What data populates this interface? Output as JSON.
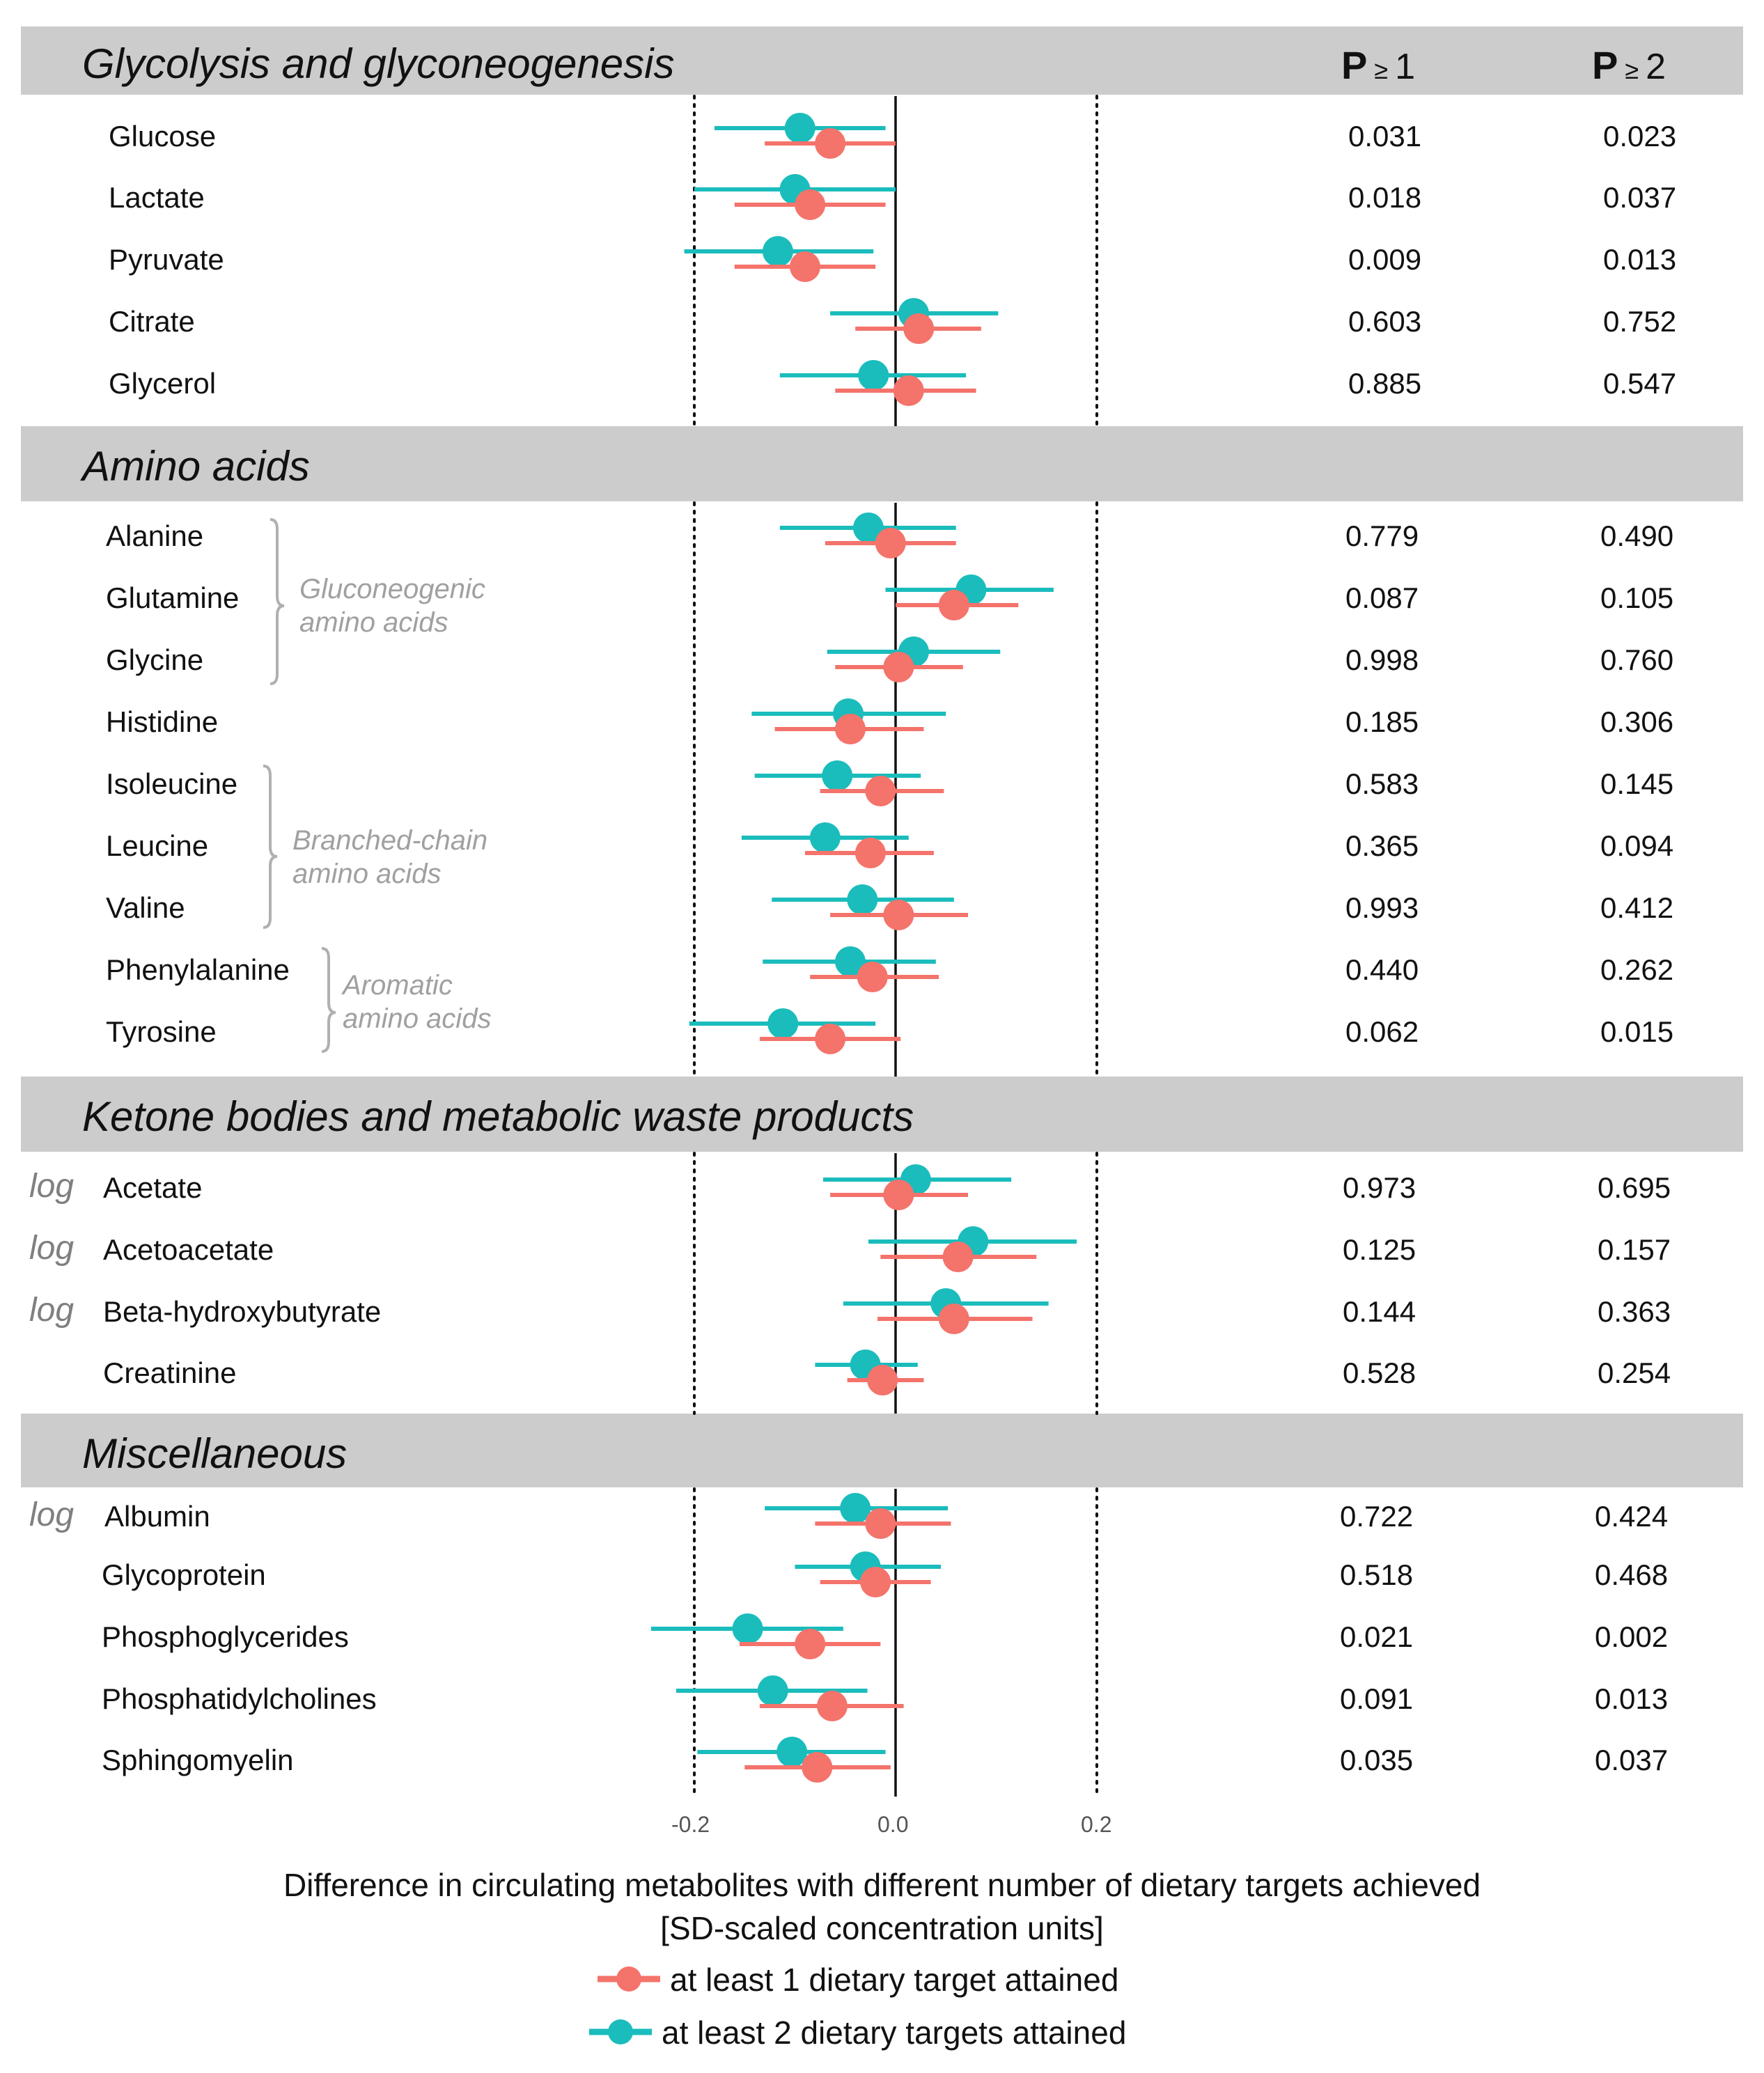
{
  "sections": [
    {
      "title": "Glycolysis and glyconeogenesis"
    },
    {
      "title": "Amino acids"
    },
    {
      "title": "Ketone bodies and metabolic waste products"
    },
    {
      "title": "Miscellaneous"
    }
  ],
  "columns": {
    "p1": {
      "letter": "P",
      "symbol": "≥",
      "value": "1"
    },
    "p2": {
      "letter": "P",
      "symbol": "≥",
      "value": "2"
    }
  },
  "rows": [
    {
      "label": "Glucose",
      "log": "",
      "p1": "0.031",
      "p2": "0.023"
    },
    {
      "label": "Lactate",
      "log": "",
      "p1": "0.018",
      "p2": "0.037"
    },
    {
      "label": "Pyruvate",
      "log": "",
      "p1": "0.009",
      "p2": "0.013"
    },
    {
      "label": "Citrate",
      "log": "",
      "p1": "0.603",
      "p2": "0.752"
    },
    {
      "label": "Glycerol",
      "log": "",
      "p1": "0.885",
      "p2": "0.547"
    },
    {
      "label": "Alanine",
      "log": "",
      "p1": "0.779",
      "p2": "0.490"
    },
    {
      "label": "Glutamine",
      "log": "",
      "p1": "0.087",
      "p2": "0.105"
    },
    {
      "label": "Glycine",
      "log": "",
      "p1": "0.998",
      "p2": "0.760"
    },
    {
      "label": "Histidine",
      "log": "",
      "p1": "0.185",
      "p2": "0.306"
    },
    {
      "label": "Isoleucine",
      "log": "",
      "p1": "0.583",
      "p2": "0.145"
    },
    {
      "label": "Leucine",
      "log": "",
      "p1": "0.365",
      "p2": "0.094"
    },
    {
      "label": "Valine",
      "log": "",
      "p1": "0.993",
      "p2": "0.412"
    },
    {
      "label": "Phenylalanine",
      "log": "",
      "p1": "0.440",
      "p2": "0.262"
    },
    {
      "label": "Tyrosine",
      "log": "",
      "p1": "0.062",
      "p2": "0.015"
    },
    {
      "label": "Acetate",
      "log": "log",
      "p1": "0.973",
      "p2": "0.695"
    },
    {
      "label": "Acetoacetate",
      "log": "log",
      "p1": "0.125",
      "p2": "0.157"
    },
    {
      "label": "Beta-hydroxybutyrate",
      "log": "log",
      "p1": "0.144",
      "p2": "0.363"
    },
    {
      "label": "Creatinine",
      "log": "",
      "p1": "0.528",
      "p2": "0.254"
    },
    {
      "label": "Albumin",
      "log": "log",
      "p1": "0.722",
      "p2": "0.424"
    },
    {
      "label": "Glycoprotein",
      "log": "",
      "p1": "0.518",
      "p2": "0.468"
    },
    {
      "label": "Phosphoglycerides",
      "log": "",
      "p1": "0.021",
      "p2": "0.002"
    },
    {
      "label": "Phosphatidylcholines",
      "log": "",
      "p1": "0.091",
      "p2": "0.013"
    },
    {
      "label": "Sphingomyelin",
      "log": "",
      "p1": "0.035",
      "p2": "0.037"
    }
  ],
  "groups": [
    {
      "line1": "Gluconeogenic",
      "line2": "amino acids"
    },
    {
      "line1": "Branched-chain",
      "line2": "amino acids"
    },
    {
      "line1": "Aromatic",
      "line2": "amino acids"
    }
  ],
  "axis": {
    "ticks": [
      "-0.2",
      "0.0",
      "0.2"
    ],
    "xlabel_line1": "Difference in circulating metabolites with different number of dietary targets achieved",
    "xlabel_line2": "[SD-scaled concentration units]"
  },
  "legend": {
    "s1": "at least 1 dietary target attained",
    "s2": "at least 2 dietary targets attained"
  },
  "colors": {
    "s1": "#f4736b",
    "s2": "#1bbcbc",
    "band": "#cccccc"
  },
  "chart_data": {
    "type": "forest",
    "title": "",
    "xlabel": "Difference in circulating metabolites with different number of dietary targets achieved [SD-scaled concentration units]",
    "xlim": [
      -0.2,
      0.2
    ],
    "xticks": [
      -0.2,
      0.0,
      0.2
    ],
    "reference_lines": [
      -0.2,
      0.0,
      0.2
    ],
    "categories": [
      "Glucose",
      "Lactate",
      "Pyruvate",
      "Citrate",
      "Glycerol",
      "Alanine",
      "Glutamine",
      "Glycine",
      "Histidine",
      "Isoleucine",
      "Leucine",
      "Valine",
      "Phenylalanine",
      "Tyrosine",
      "Acetate",
      "Acetoacetate",
      "Beta-hydroxybutyrate",
      "Creatinine",
      "Albumin",
      "Glycoprotein",
      "Phosphoglycerides",
      "Phosphatidylcholines",
      "Sphingomyelin"
    ],
    "series": [
      {
        "name": "at least 1 dietary target attained",
        "estimate": [
          -0.065,
          -0.085,
          -0.09,
          0.023,
          0.013,
          -0.005,
          0.058,
          0.003,
          -0.045,
          -0.015,
          -0.025,
          0.003,
          -0.023,
          -0.065,
          0.003,
          0.062,
          0.058,
          -0.013,
          -0.015,
          -0.02,
          -0.085,
          -0.063,
          -0.078
        ],
        "ci_low": [
          -0.13,
          -0.16,
          -0.16,
          -0.04,
          -0.06,
          -0.07,
          0.0,
          -0.06,
          -0.12,
          -0.075,
          -0.09,
          -0.065,
          -0.085,
          -0.135,
          -0.065,
          -0.015,
          -0.018,
          -0.048,
          -0.08,
          -0.075,
          -0.155,
          -0.135,
          -0.15
        ],
        "ci_high": [
          0.0,
          -0.01,
          -0.02,
          0.085,
          0.08,
          0.06,
          0.122,
          0.067,
          0.028,
          0.048,
          0.038,
          0.072,
          0.043,
          0.005,
          0.072,
          0.14,
          0.136,
          0.028,
          0.055,
          0.035,
          -0.015,
          0.008,
          -0.005
        ]
      },
      {
        "name": "at least 2 dietary targets attained",
        "estimate": [
          -0.095,
          -0.1,
          -0.117,
          0.018,
          -0.022,
          -0.027,
          0.075,
          0.018,
          -0.047,
          -0.058,
          -0.07,
          -0.033,
          -0.045,
          -0.112,
          0.02,
          0.077,
          0.05,
          -0.03,
          -0.04,
          -0.03,
          -0.147,
          -0.122,
          -0.103
        ],
        "ci_low": [
          -0.18,
          -0.2,
          -0.21,
          -0.065,
          -0.115,
          -0.115,
          -0.01,
          -0.068,
          -0.143,
          -0.14,
          -0.153,
          -0.123,
          -0.132,
          -0.205,
          -0.072,
          -0.027,
          -0.052,
          -0.08,
          -0.13,
          -0.1,
          -0.243,
          -0.218,
          -0.197
        ],
        "ci_high": [
          -0.01,
          0.0,
          -0.022,
          0.102,
          0.07,
          0.06,
          0.157,
          0.104,
          0.05,
          0.025,
          0.013,
          0.058,
          0.04,
          -0.02,
          0.115,
          0.18,
          0.152,
          0.022,
          0.052,
          0.045,
          -0.052,
          -0.028,
          -0.01
        ]
      }
    ]
  }
}
